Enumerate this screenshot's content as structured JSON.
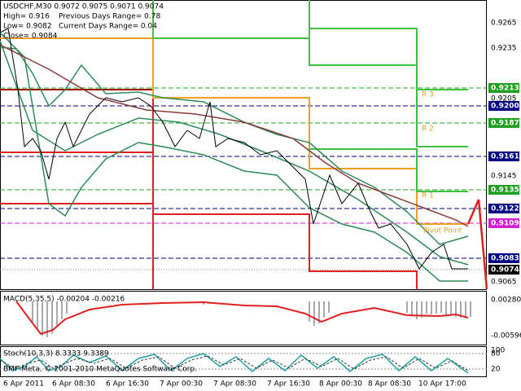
{
  "header": {
    "symbol_line": "USDCHF,M30 0.9072 0.9075 0.9071 0.9074",
    "high": "High= 0.916",
    "prev_range": "Previous Days Range= 0.78",
    "low": "Low= 0.9082",
    "cur_range": "Current Days Range= 0.04",
    "close": "Close= 0.9084"
  },
  "levels": {
    "r3": "R 3",
    "r2": "R 2",
    "r1": "R 1",
    "pivot": "Pivot Point"
  },
  "price_axis": {
    "labels": [
      "0.9265",
      "0.9235",
      "0.9205",
      "0.9145",
      "0.9065"
    ],
    "boxes": [
      "0.9213",
      "0.9200",
      "0.9187",
      "0.9161",
      "0.9135",
      "0.9122",
      "0.9109",
      "0.9083",
      "0.9074"
    ]
  },
  "macd": {
    "title": "MACD(5,35,5) -0.00204 -0.00216",
    "axis": [
      "0.00280",
      "-0.00596"
    ]
  },
  "stoch": {
    "title": "Stoch(10,3,3) 8.3333 9.3389",
    "axis": [
      "100",
      "80",
      "20"
    ]
  },
  "copyright": "BMF-Meta, © 2001-2010 MetaQuotes Software Corp.",
  "time_axis": [
    "6 Apr 2011",
    "6 Apr 08:30",
    "6 Apr 16:30",
    "7 Apr 00:30",
    "7 Apr 08:30",
    "7 Apr 16:30",
    "8 Apr 00:30",
    "8 Apr 08:30",
    "10 Apr 17:00"
  ]
}
